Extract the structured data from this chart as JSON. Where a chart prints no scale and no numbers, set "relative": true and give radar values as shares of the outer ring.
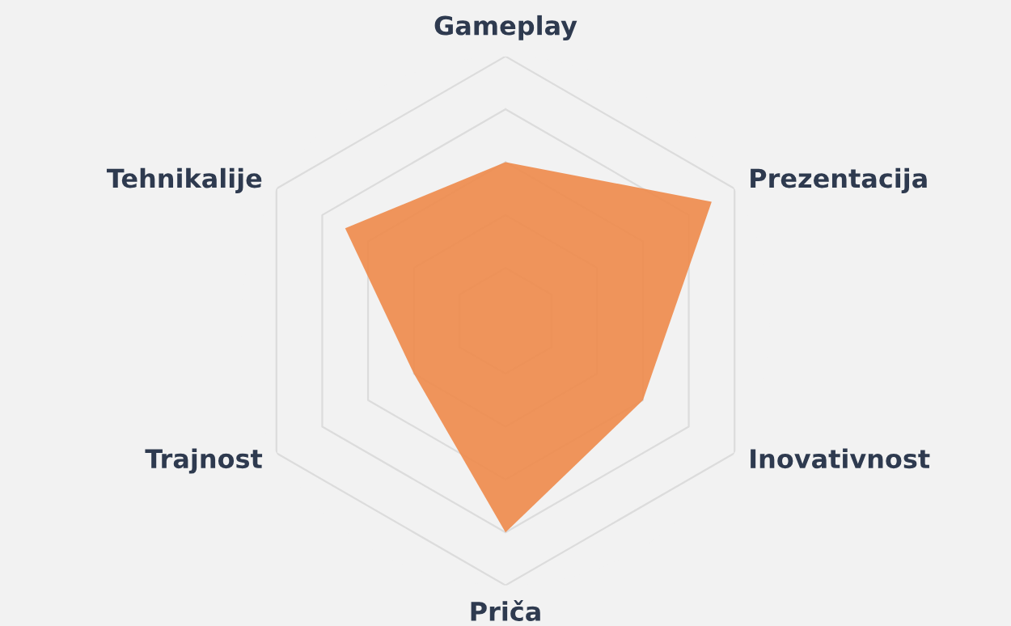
{
  "chart_data": {
    "type": "radar",
    "relative": true,
    "grid": true,
    "categories": [
      "Gameplay",
      "Prezentacija",
      "Inovativnost",
      "Priča",
      "Trajnost",
      "Tehnikalije"
    ],
    "series": [
      {
        "color": "#ee8a4a",
        "values": [
          0.6,
          0.9,
          0.6,
          0.8,
          0.4,
          0.7
        ]
      }
    ]
  }
}
